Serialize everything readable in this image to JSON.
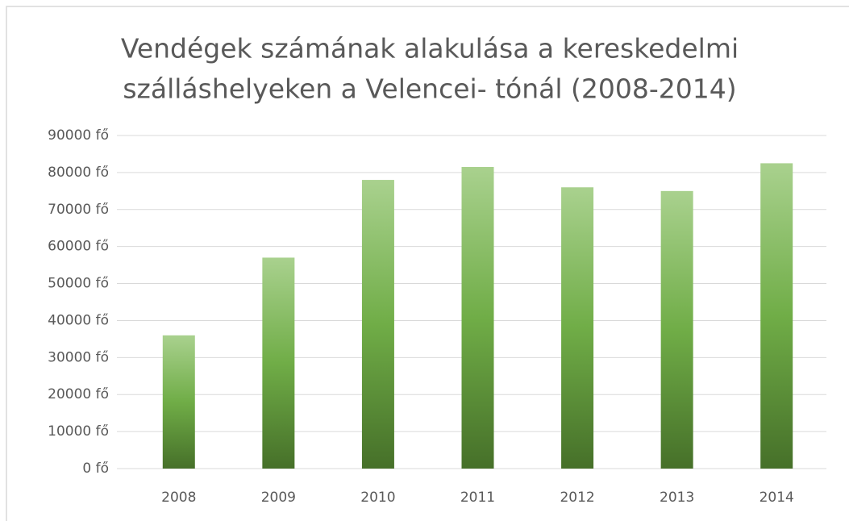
{
  "chart_data": {
    "type": "bar",
    "title": [
      "Vendégek számának alakulása a kereskedelmi",
      "szálláshelyeken a Velencei- tónál (2008-2014)"
    ],
    "categories": [
      "2008",
      "2009",
      "2010",
      "2011",
      "2012",
      "2013",
      "2014"
    ],
    "values": [
      36000,
      57000,
      78000,
      81500,
      76000,
      75000,
      82500
    ],
    "color": "#70ad47",
    "ylim": [
      0,
      90000
    ],
    "yticks": [
      {
        "value": 0,
        "label": "0 fő"
      },
      {
        "value": 10000,
        "label": "10000 fő"
      },
      {
        "value": 20000,
        "label": "20000 fő"
      },
      {
        "value": 30000,
        "label": "30000 fő"
      },
      {
        "value": 40000,
        "label": "40000 fő"
      },
      {
        "value": 50000,
        "label": "50000 fő"
      },
      {
        "value": 60000,
        "label": "60000 fő"
      },
      {
        "value": 70000,
        "label": "70000 fő"
      },
      {
        "value": 80000,
        "label": "80000 fő"
      },
      {
        "value": 90000,
        "label": "90000 fő"
      }
    ],
    "grid": true
  }
}
